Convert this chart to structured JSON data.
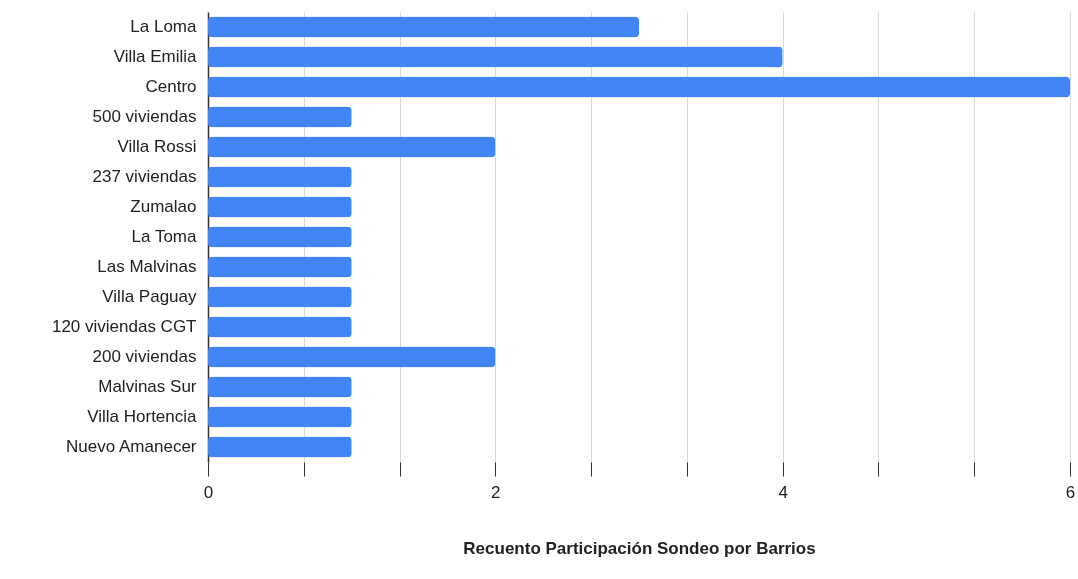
{
  "chart_data": {
    "type": "bar",
    "orientation": "horizontal",
    "xlabel": "Recuento Participación Sondeo por Barrios",
    "categories": [
      "La Loma",
      "Villa Emilia",
      "Centro",
      "500 viviendas",
      "Villa Rossi",
      "237 viviendas",
      "Zumalao",
      "La Toma",
      "Las Malvinas",
      "Villa Paguay",
      "120 viviendas CGT",
      "200 viviendas",
      "Malvinas Sur",
      "Villa Hortencia",
      "Nuevo Amanecer"
    ],
    "values": [
      3,
      4,
      6,
      1,
      2,
      1,
      1,
      1,
      1,
      1,
      1,
      2,
      1,
      1,
      1
    ],
    "color": "#4285f4",
    "xlim": [
      0,
      6
    ],
    "xticks": [
      0,
      {
        "value": 0.667,
        "label": null
      },
      {
        "value": 1.333,
        "label": null
      },
      2,
      {
        "value": 2.667,
        "label": null
      },
      {
        "value": 3.333,
        "label": null
      },
      4,
      {
        "value": 4.667,
        "label": null
      },
      {
        "value": 5.333,
        "label": null
      },
      6
    ],
    "grid": "x"
  }
}
